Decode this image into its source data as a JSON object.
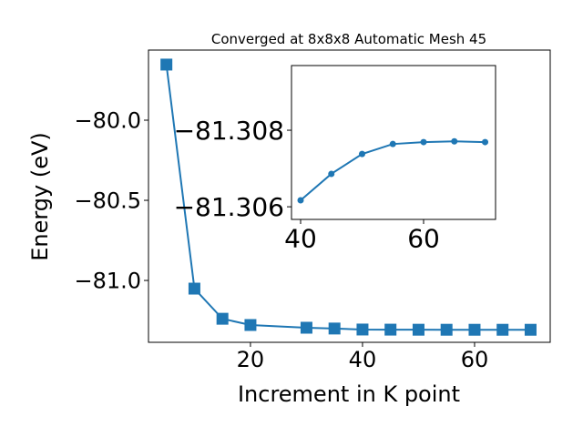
{
  "chart_data": [
    {
      "type": "line",
      "title": "Converged at 8x8x8 Automatic Mesh 45",
      "x_label": "Increment in K point",
      "y_label": "Energy (eV)",
      "x": [
        5,
        10,
        15,
        20,
        30,
        35,
        40,
        45,
        50,
        55,
        60,
        65,
        70
      ],
      "series": [
        {
          "color": "#1f77b4",
          "marker": "square",
          "values": [
            -79.653,
            -81.051,
            -81.239,
            -81.278,
            -81.295,
            -81.3,
            -81.3062,
            -81.3069,
            -81.3074,
            -81.3076,
            -81.3077,
            -81.3077,
            -81.3077
          ]
        }
      ],
      "xlim": [
        1.8,
        73.5
      ],
      "ylim": [
        -81.386,
        -79.5625
      ],
      "xticks": [
        20,
        40,
        60
      ],
      "yticks": [
        {
          "value": -81.0,
          "label": "−81.0"
        },
        {
          "value": -80.5,
          "label": "−80.5"
        },
        {
          "value": -80.0,
          "label": "−80.0"
        }
      ]
    },
    {
      "type": "line",
      "x": [
        40,
        45,
        50,
        55,
        60,
        65,
        70
      ],
      "series": [
        {
          "color": "#1f77b4",
          "marker": "circle",
          "values": [
            -81.30617,
            -81.30686,
            -81.30738,
            -81.30764,
            -81.30769,
            -81.30771,
            -81.30769
          ]
        }
      ],
      "xlim": [
        38.52,
        71.7
      ],
      "ylim": [
        -81.30567,
        -81.30969
      ],
      "xticks": [
        40,
        60
      ],
      "yticks": [
        {
          "value": -81.306,
          "label": "−81.306"
        },
        {
          "value": -81.308,
          "label": "−81.308"
        }
      ]
    }
  ]
}
